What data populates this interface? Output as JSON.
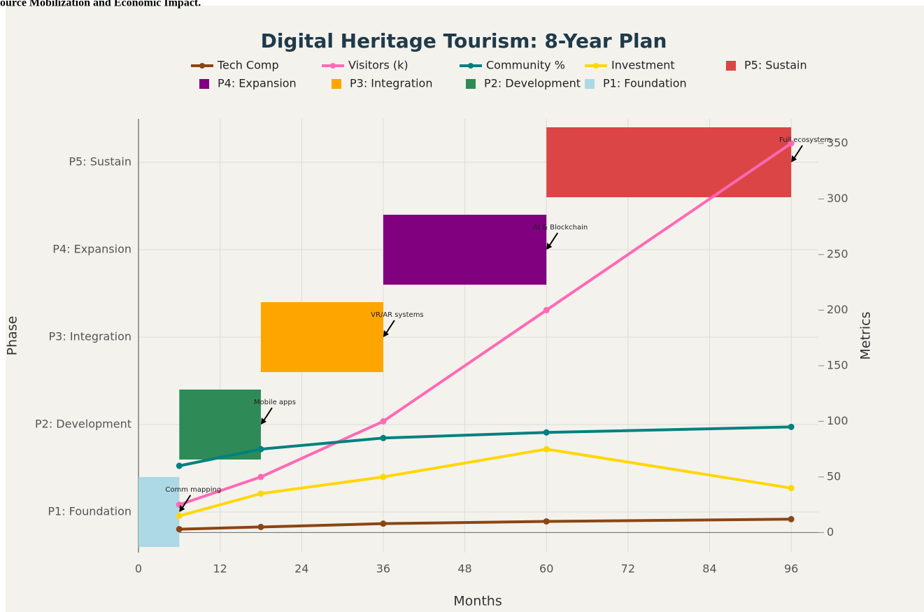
{
  "page_heading": "ource Mobilization and Economic Impact.",
  "chart_data": {
    "type": "gantt-line",
    "title": "Digital Heritage Tourism: 8-Year Plan",
    "xlabel": "Months",
    "ylabel": "Phase",
    "y2label": "Metrics",
    "categories": [
      "P1: Foundation",
      "P2: Development",
      "P3: Integration",
      "P4: Expansion",
      "P5: Sustain"
    ],
    "bars": {
      "start": [
        0,
        6,
        18,
        36,
        60
      ],
      "end": [
        6,
        18,
        36,
        60,
        96
      ],
      "colors": [
        "#add8e6",
        "#2e8b57",
        "#ffa500",
        "#800080",
        "#db4545"
      ]
    },
    "x": [
      6,
      18,
      36,
      60,
      96
    ],
    "series": [
      {
        "name": "Tech Comp",
        "color": "#8b4513",
        "values": [
          3,
          5,
          8,
          10,
          12
        ],
        "axis": "y2"
      },
      {
        "name": "Visitors (k)",
        "color": "#ff69b4",
        "values": [
          25,
          50,
          100,
          200,
          350
        ],
        "axis": "y2"
      },
      {
        "name": "Community %",
        "color": "#008080",
        "values": [
          60,
          75,
          85,
          90,
          95
        ],
        "axis": "y2"
      },
      {
        "name": "Investment",
        "color": "#ffd700",
        "values": [
          15,
          35,
          50,
          75,
          40
        ],
        "axis": "y2"
      }
    ],
    "annotations": [
      {
        "text": "Comm mapping",
        "x": 6,
        "y": "P1: Foundation"
      },
      {
        "text": "Mobile apps",
        "x": 18,
        "y": "P2: Development"
      },
      {
        "text": "VR/AR systems",
        "x": 36,
        "y": "P3: Integration"
      },
      {
        "text": "AI & Blockchain",
        "x": 60,
        "y": "P4: Expansion"
      },
      {
        "text": "Full ecosystem",
        "x": 96,
        "y": "P5: Sustain"
      }
    ],
    "xlim": [
      0,
      100
    ],
    "xticks": [
      0,
      12,
      24,
      36,
      48,
      60,
      72,
      84,
      96
    ],
    "y2lim": [
      -18,
      372
    ],
    "y2ticks": [
      0,
      50,
      100,
      150,
      200,
      250,
      300,
      350
    ],
    "grid": true
  }
}
